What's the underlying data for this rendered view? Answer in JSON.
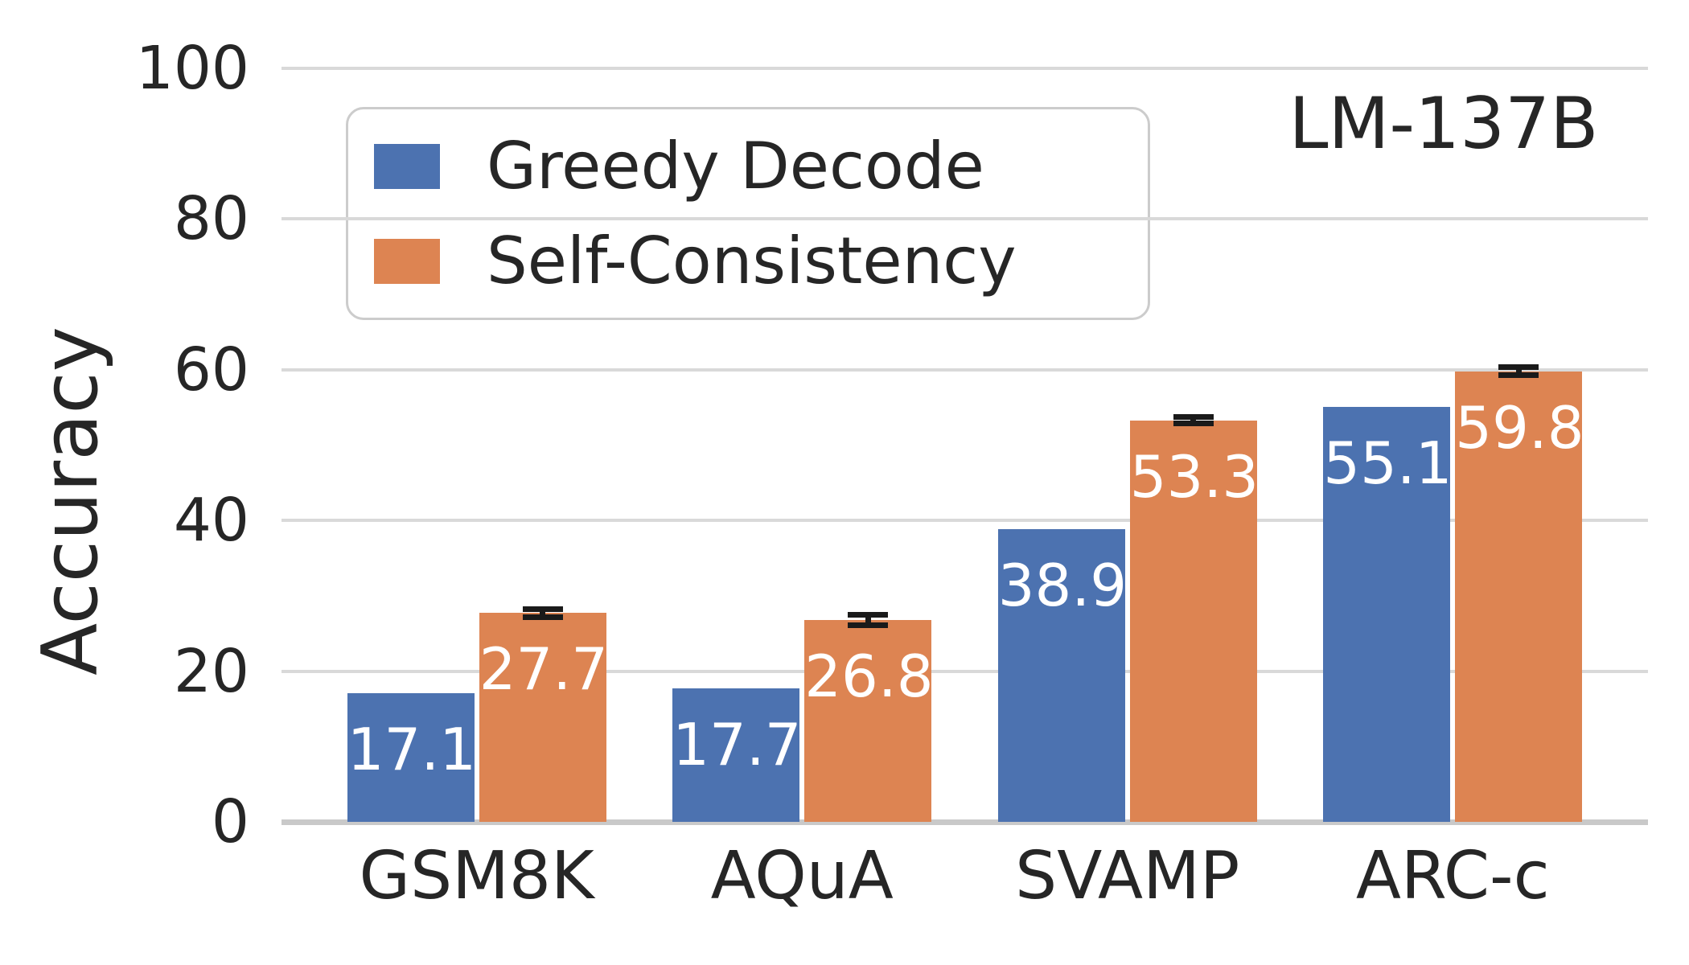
{
  "title": "LM-137B",
  "axes": {
    "ylabel": "Accuracy"
  },
  "legend": {
    "items": [
      {
        "label": "Greedy Decode",
        "color": "#4c72b0"
      },
      {
        "label": "Self-Consistency",
        "color": "#dd8452"
      }
    ]
  },
  "colors": {
    "greedy_decode": "#4c72b0",
    "self_consistency": "#dd8452",
    "gridline": "#d9d9d9",
    "axis_line": "#c9c9c9",
    "text": "#262626",
    "bar_value_label": "#ffffff",
    "error_bar": "#1a1a1a",
    "legend_border": "#cccccc"
  },
  "chart_data": {
    "type": "bar",
    "title": "LM-137B",
    "xlabel": "",
    "ylabel": "Accuracy",
    "categories": [
      "GSM8K",
      "AQuA",
      "SVAMP",
      "ARC-c"
    ],
    "series": [
      {
        "name": "Greedy Decode",
        "color": "#4c72b0",
        "values": [
          17.1,
          17.7,
          38.9,
          55.1
        ]
      },
      {
        "name": "Self-Consistency",
        "color": "#dd8452",
        "values": [
          27.7,
          26.8,
          53.3,
          59.8
        ],
        "errors": [
          0.5,
          0.7,
          0.4,
          0.5
        ]
      }
    ],
    "bar_labels": [
      [
        "17.1",
        "17.7",
        "38.9",
        "55.1"
      ],
      [
        "27.7",
        "26.8",
        "53.3",
        "59.8"
      ]
    ],
    "ylim": [
      0,
      100
    ],
    "yticks": [
      0,
      20,
      40,
      60,
      80,
      100
    ],
    "grid": "horizontal",
    "legend_position": "upper-left",
    "annotation": "LM-137B"
  }
}
